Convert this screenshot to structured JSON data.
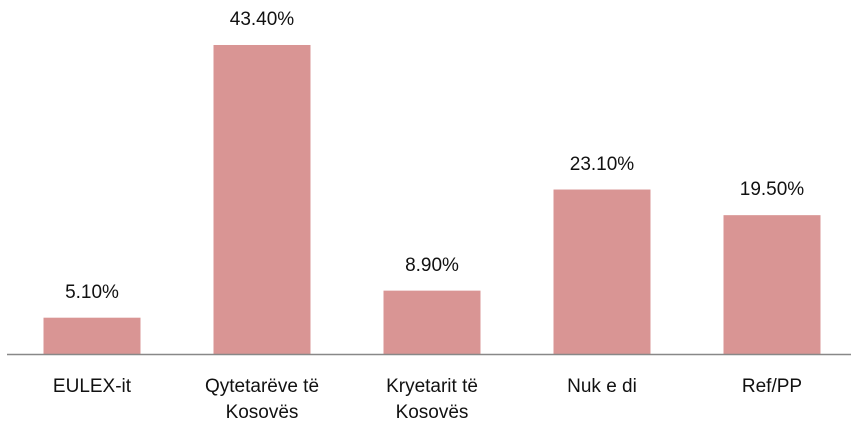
{
  "chart_data": {
    "type": "bar",
    "categories": [
      "EULEX-it",
      "Qytetarëve të Kosovës",
      "Kryetarit të Kosovës",
      "Nuk e di",
      "Ref/PP"
    ],
    "values": [
      5.1,
      43.4,
      8.9,
      23.1,
      19.5
    ],
    "value_labels": [
      "5.10%",
      "43.40%",
      "8.90%",
      "23.10%",
      "19.50%"
    ],
    "color": "#d99594"
  }
}
